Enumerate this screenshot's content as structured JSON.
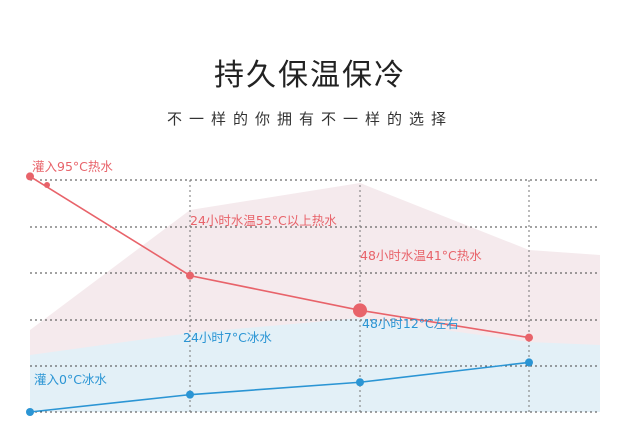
{
  "header": {
    "title": "持久保温保冷",
    "subtitle": "不一样的你拥有不一样的选择"
  },
  "chart_data": {
    "type": "line",
    "title": "持久保温保冷",
    "subtitle": "不一样的你拥有不一样的选择",
    "x": [
      0,
      24,
      48,
      72
    ],
    "ylim": [
      0,
      100
    ],
    "grid": true,
    "series": [
      {
        "name": "hot",
        "color": "#e8636a",
        "values": [
          95,
          55,
          41,
          30
        ],
        "labels": [
          "灌入95°C热水",
          "24小时水温55°C以上热水",
          "48小时水温41°C热水",
          ""
        ]
      },
      {
        "name": "cold",
        "color": "#2b95d4",
        "values": [
          0,
          7,
          12,
          20
        ],
        "labels": [
          "灌入0°C冰水",
          "24小时7°C冰水",
          "48小时12°C左右",
          ""
        ]
      }
    ]
  }
}
